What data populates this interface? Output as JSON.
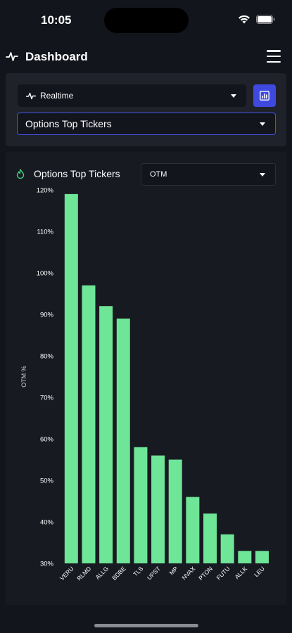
{
  "status_bar": {
    "time": "10:05"
  },
  "header": {
    "title": "Dashboard",
    "pulse_icon": "pulse-icon",
    "menu_icon": "hamburger-menu-icon"
  },
  "controls": {
    "realtime_select": {
      "value": "Realtime",
      "icon": "pulse-icon"
    },
    "chart_button_icon": "chart-icon",
    "category_select": {
      "value": "Options Top Tickers"
    }
  },
  "panel": {
    "title": "Options Top Tickers",
    "icon": "flame-icon",
    "metric_select": {
      "value": "OTM"
    }
  },
  "colors": {
    "background": "#13151c",
    "card": "#1f222b",
    "accent": "#3f49e0",
    "bar": "#6ee597",
    "icon_green": "#3ecf7a"
  },
  "chart_data": {
    "type": "bar",
    "title": "",
    "xlabel": "",
    "ylabel": "OTM %",
    "ylim": [
      30,
      120
    ],
    "yticks": [
      "120%",
      "110%",
      "100%",
      "90%",
      "80%",
      "70%",
      "60%",
      "50%",
      "40%",
      "30%"
    ],
    "grid": false,
    "categories": [
      "VERU",
      "RLMD",
      "ALLG",
      "BDBE",
      "TLS",
      "UPST",
      "MP",
      "NVAX",
      "PTON",
      "FUTU",
      "ALLK",
      "LEU"
    ],
    "values": [
      119,
      97,
      92,
      89,
      58,
      56,
      55,
      46,
      42,
      37,
      33,
      33
    ]
  }
}
